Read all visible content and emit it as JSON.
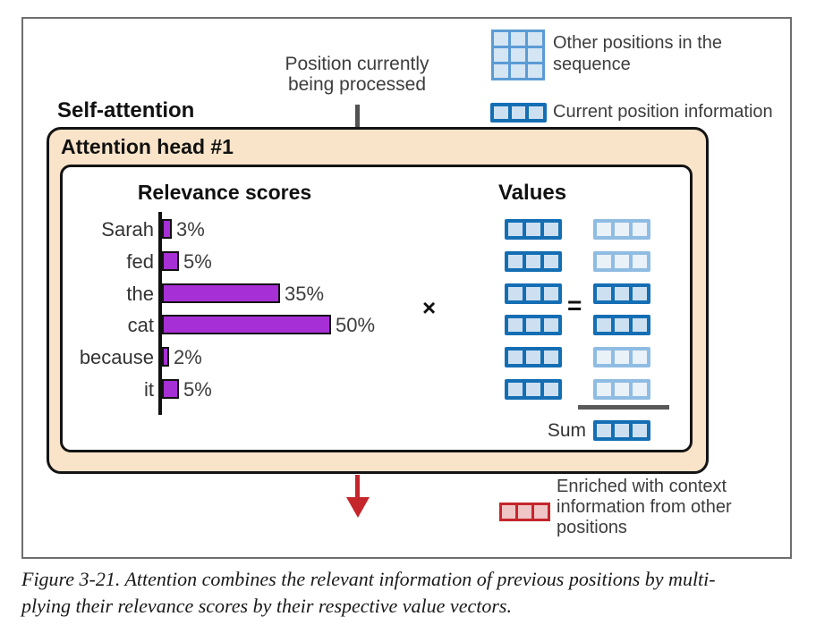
{
  "legend_top": {
    "other_positions_label": "Other positions in the sequence",
    "current_position_label": "Current position information"
  },
  "annotation": {
    "position_processing": "Position currently being processed"
  },
  "self_attention_label": "Self-attention",
  "attention_head_label": "Attention head #1",
  "chart_data": {
    "type": "bar",
    "orientation": "horizontal",
    "title": "Relevance scores",
    "categories": [
      "Sarah",
      "fed",
      "the",
      "cat",
      "because",
      "it"
    ],
    "values": [
      3,
      5,
      35,
      50,
      2,
      5
    ],
    "value_labels": [
      "3%",
      "5%",
      "35%",
      "50%",
      "2%",
      "5%"
    ],
    "value_suffix": "%",
    "xlim": [
      0,
      50
    ],
    "grid": false,
    "legend": false
  },
  "values_section": {
    "title": "Values",
    "multiply_symbol": "×",
    "equals_symbol": "=",
    "sum_label": "Sum",
    "row_count": 6,
    "cells_per_vector": 3,
    "result_emphasis": [
      false,
      false,
      true,
      true,
      false,
      false
    ]
  },
  "legend_bottom": {
    "enriched_label": "Enriched with context information from other positions"
  },
  "caption": {
    "line1": "Figure 3-21. Attention combines the relevant information of previous positions by multi-",
    "line2": "plying their relevance scores by their respective value vectors."
  },
  "colors": {
    "vector_border": "#146eb4",
    "vector_fill": "#cde0f1",
    "vector_faded_border": "#8fbce2",
    "vector_faded_fill": "#e9f1f9",
    "grid_border": "#5b9bd5",
    "grid_fill": "#d4e5f4",
    "bar_purple": "#a62fd5",
    "panel_peach": "#fae4c9",
    "red_accent": "#c5262c",
    "red_fill": "#f0c5c5",
    "arrow_gray": "#525252"
  }
}
